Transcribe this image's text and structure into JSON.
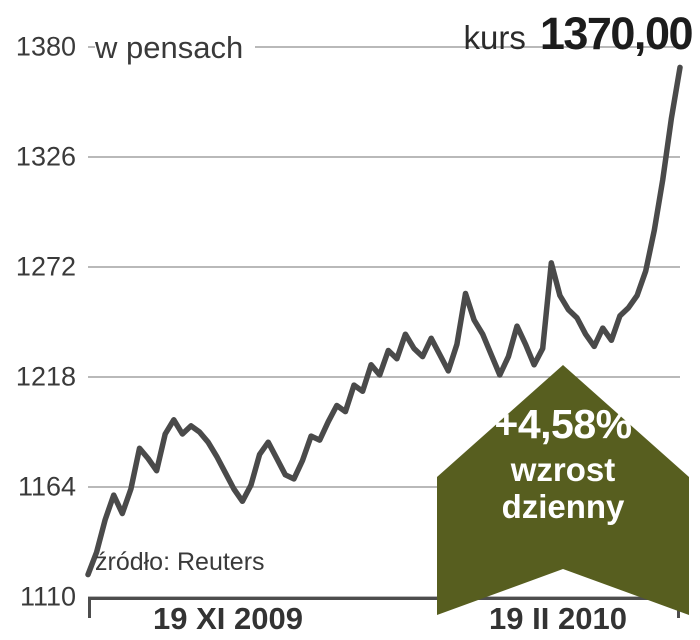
{
  "header": {
    "unit_label": "w pensach",
    "kurs_label": "kurs",
    "kurs_value": "1370,00"
  },
  "source_label": "źródło: Reuters",
  "badge": {
    "percent": "+4,58%",
    "line1": "wzrost",
    "line2": "dzienny",
    "color": "#575e1f"
  },
  "chart_data": {
    "type": "line",
    "title": "kurs 1370,00",
    "unit": "w pensach",
    "source": "źródło: Reuters",
    "ylim": [
      1110,
      1380
    ],
    "yticks": [
      1380,
      1326,
      1272,
      1218,
      1164,
      1110
    ],
    "xticklabels": [
      "19 XI 2009",
      "19 II 2010"
    ],
    "grid": true,
    "legend": false,
    "line_color": "#4a4a4a",
    "last_value": "1370,00",
    "daily_change_percent": "+4,58%",
    "values": [
      1121,
      1132,
      1148,
      1160,
      1151,
      1163,
      1183,
      1178,
      1172,
      1190,
      1197,
      1190,
      1194,
      1191,
      1186,
      1179,
      1171,
      1163,
      1157,
      1165,
      1180,
      1186,
      1178,
      1170,
      1168,
      1177,
      1189,
      1187,
      1196,
      1204,
      1201,
      1214,
      1211,
      1224,
      1219,
      1231,
      1227,
      1239,
      1232,
      1228,
      1237,
      1229,
      1221,
      1234,
      1259,
      1246,
      1239,
      1229,
      1219,
      1228,
      1243,
      1234,
      1224,
      1232,
      1274,
      1258,
      1251,
      1247,
      1239,
      1233,
      1242,
      1236,
      1248,
      1252,
      1258,
      1270,
      1290,
      1315,
      1345,
      1370
    ]
  }
}
